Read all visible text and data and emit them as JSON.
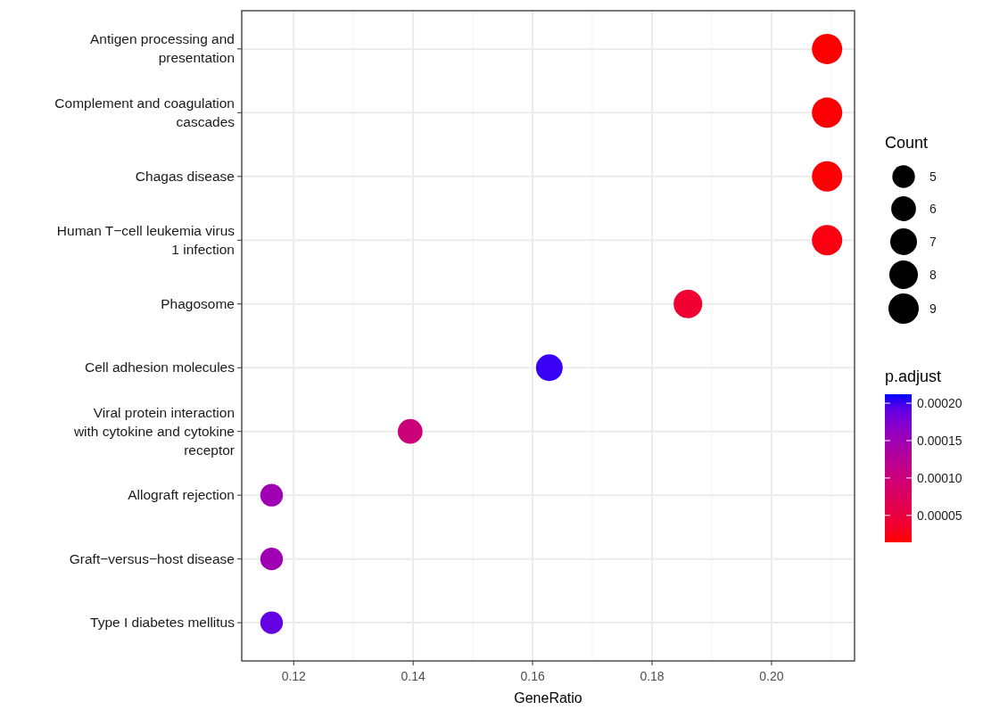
{
  "chart_data": {
    "type": "bubble",
    "orientation": "horizontal",
    "xlabel": "GeneRatio",
    "legend_title": "Count",
    "clabel": "p.adjust",
    "grid": true,
    "categories": [
      "Antigen processing and presentation",
      "Complement and coagulation cascades",
      "Chagas disease",
      "Human T−cell leukemia virus 1 infection",
      "Phagosome",
      "Cell adhesion molecules",
      "Viral protein interaction with cytokine and cytokine receptor",
      "Allograft rejection",
      "Graft−versus−host disease",
      "Type I diabetes mellitus"
    ],
    "values": [
      0.2093,
      0.2093,
      0.2093,
      0.2093,
      0.186,
      0.1628,
      0.1395,
      0.1163,
      0.1163,
      0.1163
    ],
    "sizes": [
      9,
      9,
      9,
      9,
      8,
      7,
      6,
      5,
      5,
      5
    ],
    "size_legend": [
      5,
      6,
      7,
      8,
      9
    ],
    "cvalues": [
      1.4e-05,
      1.5e-05,
      1.5e-05,
      2e-05,
      4e-05,
      0.000205,
      0.0001,
      0.00015,
      0.00015,
      0.00019
    ],
    "clim": [
      1.4e-05,
      0.000212
    ],
    "cticks": [
      {
        "value": 5e-05,
        "label": "0.00005"
      },
      {
        "value": 0.0001,
        "label": "0.00010"
      },
      {
        "value": 0.00015,
        "label": "0.00015"
      },
      {
        "value": 0.0002,
        "label": "0.00020"
      }
    ],
    "xlim": [
      0.1113,
      0.2139
    ],
    "xticks": [
      {
        "value": 0.12,
        "label": "0.12"
      },
      {
        "value": 0.14,
        "label": "0.14"
      },
      {
        "value": 0.16,
        "label": "0.16"
      },
      {
        "value": 0.18,
        "label": "0.18"
      },
      {
        "value": 0.2,
        "label": "0.20"
      }
    ]
  }
}
